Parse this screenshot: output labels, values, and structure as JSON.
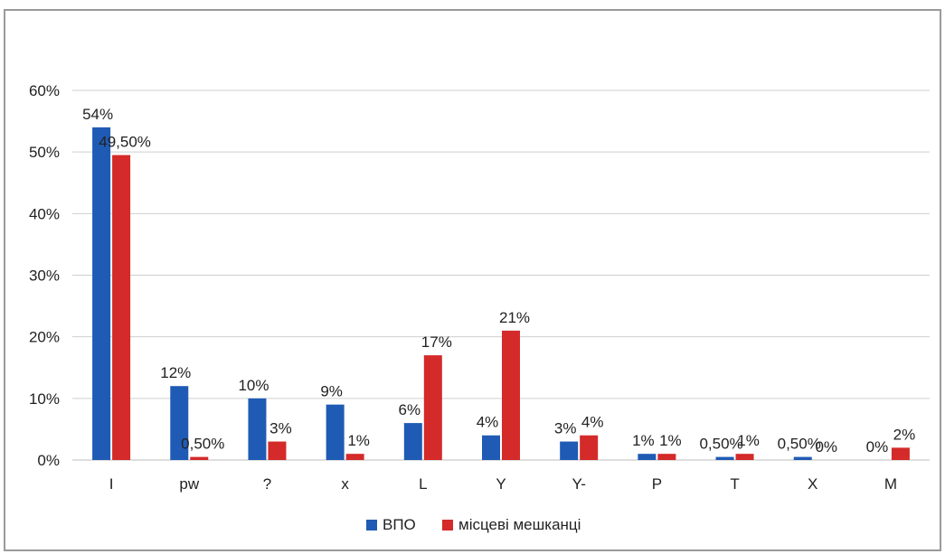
{
  "chart_data": {
    "type": "bar",
    "title": "",
    "xlabel": "",
    "ylabel": "",
    "ylim": [
      0,
      60
    ],
    "yticks": [
      "0%",
      "10%",
      "20%",
      "30%",
      "40%",
      "50%",
      "60%"
    ],
    "grid": true,
    "legend_position": "bottom",
    "categories": [
      "I",
      "pw",
      "?",
      "x",
      "L",
      "Y",
      "Y-",
      "P",
      "T",
      "X",
      "M"
    ],
    "series": [
      {
        "name": "ВПО",
        "color": "#1f5bb5",
        "values": [
          54,
          12,
          10,
          9,
          6,
          4,
          3,
          1,
          0.5,
          0.5,
          0
        ],
        "labels": [
          "54%",
          "12%",
          "10%",
          "9%",
          "6%",
          "4%",
          "3%",
          "1%",
          "0,50%",
          "0,50%",
          "0%"
        ]
      },
      {
        "name": "місцеві мешканці",
        "color": "#d42a2a",
        "values": [
          49.5,
          0.5,
          3,
          1,
          17,
          21,
          4,
          1,
          1,
          0,
          2
        ],
        "labels": [
          "49,50%",
          "0,50%",
          "3%",
          "1%",
          "17%",
          "21%",
          "4%",
          "1%",
          "1%",
          "0%",
          "2%"
        ]
      }
    ]
  }
}
